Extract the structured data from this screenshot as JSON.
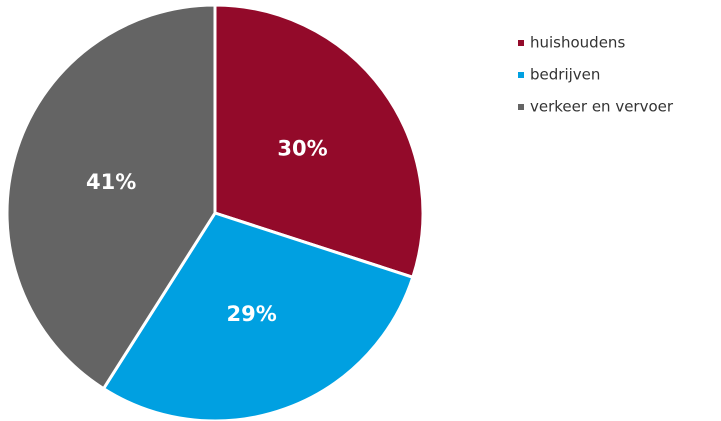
{
  "chart_data": {
    "type": "pie",
    "categories": [
      "huishoudens",
      "bedrijven",
      "verkeer en vervoer"
    ],
    "values": [
      30,
      29,
      41
    ],
    "value_labels": [
      "30%",
      "29%",
      "41%"
    ],
    "colors": [
      "#930a2a",
      "#00a0e1",
      "#646464"
    ],
    "legend": "right"
  }
}
